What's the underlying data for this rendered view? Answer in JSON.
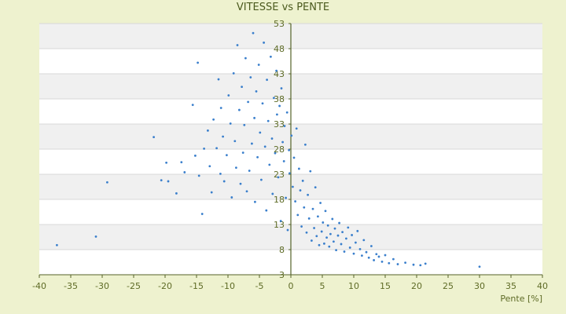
{
  "chart_data": {
    "type": "scatter",
    "title": "VITESSE vs PENTE",
    "xlabel": "Pente [%]",
    "ylabel": "",
    "xlim": [
      -40,
      40
    ],
    "ylim": [
      3,
      53
    ],
    "x_ticks": [
      "-40",
      "-35",
      "-30",
      "-25",
      "-20",
      "-15",
      "-10",
      "-5",
      "0",
      "5",
      "10",
      "15",
      "20",
      "25",
      "30",
      "35",
      "40"
    ],
    "y_ticks": [
      "3",
      "8",
      "13",
      "18",
      "23",
      "28",
      "33",
      "38",
      "43",
      "48",
      "53"
    ],
    "grid": "alternating horizontal bands",
    "legend": "none",
    "colors": {
      "points": "#3a7fcc",
      "plot_light": "#ffffff",
      "plot_band": "#f0f0f0",
      "axis": "#55632a",
      "background": "#eef2cf"
    },
    "series": [
      {
        "values": [
          [
            -37.2,
            8.9
          ],
          [
            -31,
            10.6
          ],
          [
            -29.2,
            21.4
          ],
          [
            -21.8,
            30.4
          ],
          [
            -20.6,
            21.8
          ],
          [
            -19.8,
            25.3
          ],
          [
            -19.5,
            21.6
          ],
          [
            -18.2,
            19.2
          ],
          [
            -17.4,
            25.4
          ],
          [
            -16.9,
            23.4
          ],
          [
            -15.6,
            36.8
          ],
          [
            -15.2,
            26.7
          ],
          [
            -14.8,
            45.2
          ],
          [
            -14.6,
            22.7
          ],
          [
            -14.1,
            15.1
          ],
          [
            -13.8,
            28.1
          ],
          [
            -13.2,
            31.7
          ],
          [
            -12.9,
            24.6
          ],
          [
            -12.6,
            19.4
          ],
          [
            -12.3,
            33.9
          ],
          [
            -11.8,
            28.2
          ],
          [
            -11.5,
            41.9
          ],
          [
            -11.2,
            23.1
          ],
          [
            -11.1,
            36.2
          ],
          [
            -10.8,
            30.5
          ],
          [
            -10.6,
            21.6
          ],
          [
            -10.2,
            26.8
          ],
          [
            -9.9,
            38.7
          ],
          [
            -9.6,
            33.1
          ],
          [
            -9.4,
            18.4
          ],
          [
            -9.1,
            43.1
          ],
          [
            -8.9,
            29.6
          ],
          [
            -8.7,
            24.3
          ],
          [
            -8.5,
            48.7
          ],
          [
            -8.2,
            35.8
          ],
          [
            -8.0,
            21.1
          ],
          [
            -7.8,
            40.4
          ],
          [
            -7.6,
            27.3
          ],
          [
            -7.4,
            32.8
          ],
          [
            -7.2,
            46.1
          ],
          [
            -7.0,
            19.6
          ],
          [
            -6.8,
            37.4
          ],
          [
            -6.6,
            23.7
          ],
          [
            -6.4,
            42.3
          ],
          [
            -6.2,
            29.1
          ],
          [
            -6.0,
            51.1
          ],
          [
            -5.8,
            34.2
          ],
          [
            -5.7,
            17.5
          ],
          [
            -5.5,
            39.5
          ],
          [
            -5.3,
            26.4
          ],
          [
            -5.1,
            44.8
          ],
          [
            -4.9,
            31.3
          ],
          [
            -4.7,
            21.9
          ],
          [
            -4.5,
            37.1
          ],
          [
            -4.3,
            49.2
          ],
          [
            -4.1,
            28.5
          ],
          [
            -3.9,
            15.8
          ],
          [
            -3.8,
            41.8
          ],
          [
            -3.6,
            33.6
          ],
          [
            -3.4,
            24.9
          ],
          [
            -3.2,
            46.4
          ],
          [
            -3.0,
            30.1
          ],
          [
            -2.9,
            19.1
          ],
          [
            -2.7,
            38.2
          ],
          [
            -2.5,
            27.2
          ],
          [
            -2.3,
            43.6
          ],
          [
            -2.2,
            34.9
          ],
          [
            -2.0,
            22.4
          ],
          [
            -1.8,
            36.6
          ],
          [
            -1.6,
            13.7
          ],
          [
            -1.5,
            40.1
          ],
          [
            -1.3,
            29.4
          ],
          [
            -1.1,
            25.6
          ],
          [
            -1.0,
            32.6
          ],
          [
            -0.8,
            18.3
          ],
          [
            -0.6,
            35.3
          ],
          [
            -0.5,
            11.9
          ],
          [
            -0.3,
            27.8
          ],
          [
            -0.2,
            23.2
          ],
          [
            0.1,
            30.7
          ],
          [
            0.3,
            20.5
          ],
          [
            0.5,
            26.3
          ],
          [
            0.7,
            17.6
          ],
          [
            0.9,
            32.1
          ],
          [
            1.1,
            14.9
          ],
          [
            1.3,
            24.1
          ],
          [
            1.5,
            19.8
          ],
          [
            1.7,
            12.6
          ],
          [
            1.9,
            21.7
          ],
          [
            2.1,
            16.4
          ],
          [
            2.3,
            28.9
          ],
          [
            2.5,
            11.4
          ],
          [
            2.7,
            18.9
          ],
          [
            2.9,
            14.2
          ],
          [
            3.1,
            23.6
          ],
          [
            3.3,
            9.8
          ],
          [
            3.5,
            16.1
          ],
          [
            3.7,
            12.3
          ],
          [
            3.9,
            20.4
          ],
          [
            4.1,
            10.7
          ],
          [
            4.3,
            14.6
          ],
          [
            4.5,
            8.9
          ],
          [
            4.7,
            17.3
          ],
          [
            4.9,
            11.6
          ],
          [
            5.1,
            13.4
          ],
          [
            5.3,
            9.2
          ],
          [
            5.5,
            15.7
          ],
          [
            5.7,
            10.4
          ],
          [
            5.9,
            12.8
          ],
          [
            6.1,
            8.6
          ],
          [
            6.3,
            11.1
          ],
          [
            6.6,
            14.1
          ],
          [
            6.8,
            9.6
          ],
          [
            7.0,
            12.2
          ],
          [
            7.2,
            7.9
          ],
          [
            7.5,
            10.8
          ],
          [
            7.7,
            13.3
          ],
          [
            8.0,
            9.1
          ],
          [
            8.2,
            11.5
          ],
          [
            8.5,
            7.6
          ],
          [
            8.8,
            10.2
          ],
          [
            9.1,
            12.4
          ],
          [
            9.4,
            8.4
          ],
          [
            9.7,
            10.9
          ],
          [
            10.0,
            7.2
          ],
          [
            10.3,
            9.4
          ],
          [
            10.6,
            11.7
          ],
          [
            11.0,
            8.1
          ],
          [
            11.3,
            6.8
          ],
          [
            11.6,
            9.9
          ],
          [
            12.0,
            7.5
          ],
          [
            12.4,
            6.4
          ],
          [
            12.8,
            8.7
          ],
          [
            13.2,
            5.9
          ],
          [
            13.6,
            7.1
          ],
          [
            14.0,
            6.6
          ],
          [
            14.5,
            5.6
          ],
          [
            15.0,
            6.9
          ],
          [
            15.6,
            5.3
          ],
          [
            16.3,
            6.1
          ],
          [
            17.0,
            5.1
          ],
          [
            18.2,
            5.4
          ],
          [
            19.5,
            5.0
          ],
          [
            20.6,
            4.9
          ],
          [
            21.4,
            5.2
          ],
          [
            30.0,
            4.6
          ]
        ]
      }
    ]
  }
}
